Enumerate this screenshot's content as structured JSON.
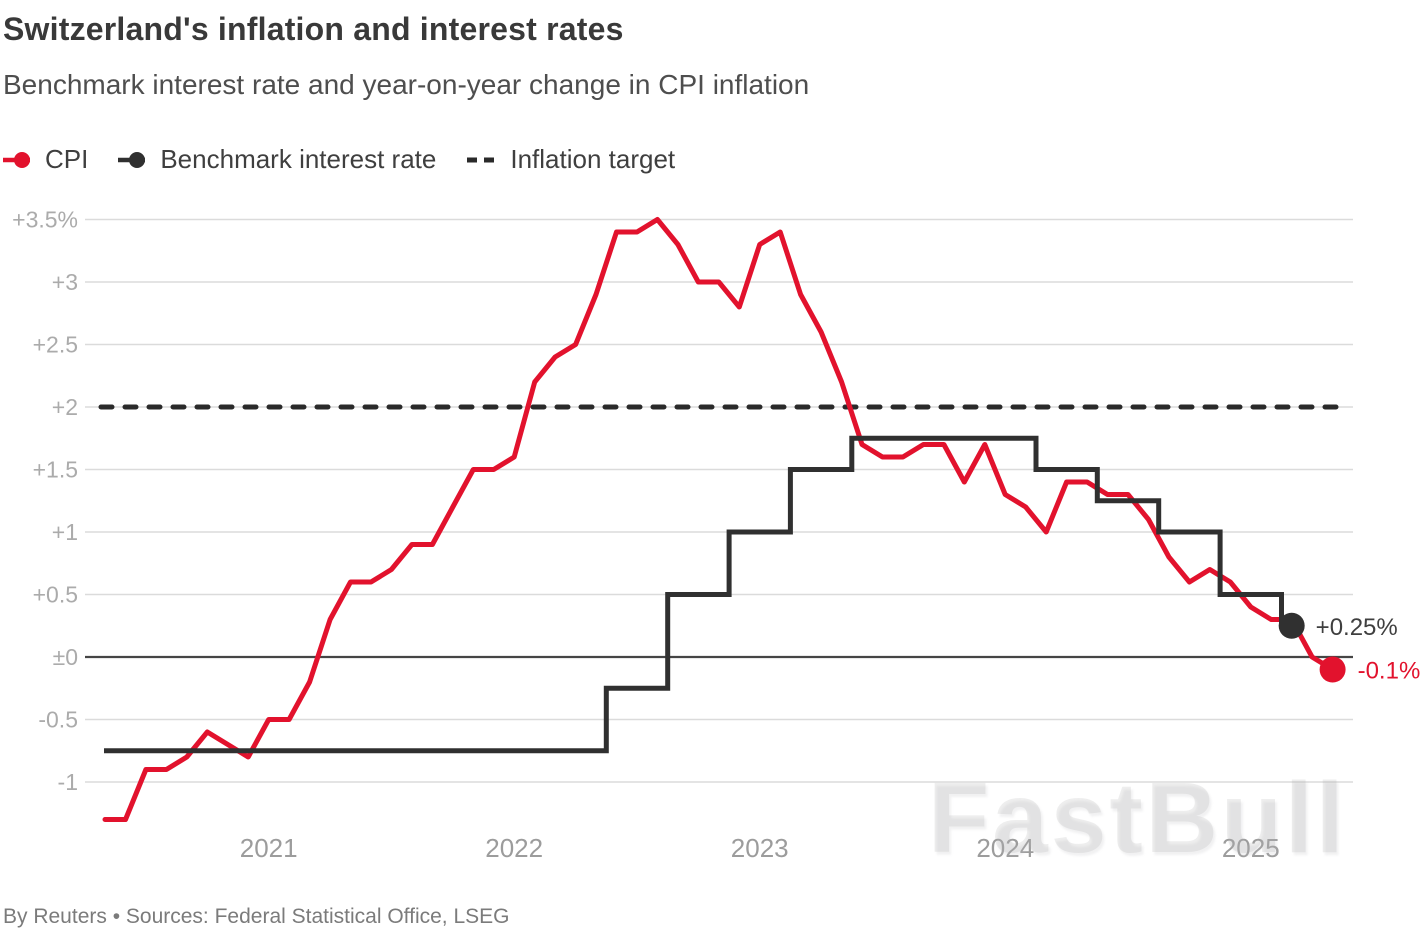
{
  "header": {
    "title": "Switzerland's inflation and interest rates",
    "subtitle": "Benchmark interest rate and year-on-year change in CPI inflation"
  },
  "legend": [
    {
      "label": "CPI",
      "marker": "line-dot",
      "color": "#e2122d"
    },
    {
      "label": "Benchmark interest rate",
      "marker": "line-dot",
      "color": "#303030"
    },
    {
      "label": "Inflation target",
      "marker": "dashes",
      "color": "#2a2a2a"
    }
  ],
  "annotations": {
    "rate_end_label": "+0.25%",
    "cpi_end_label": "-0.1%"
  },
  "watermark": "FastBull",
  "footer": {
    "source_line": "By Reuters • Sources: Federal Statistical Office, LSEG"
  },
  "colors": {
    "cpi_red": "#e2122d",
    "rate_black": "#303030",
    "target_dash": "#2a2a2a",
    "gridline": "#dbdbdb",
    "zero_line": "#454545",
    "y_tick_label": "#ababab",
    "x_tick_label": "#9c9c9c",
    "annotation_dark": "#3f3f3f"
  },
  "chart_data": {
    "type": "line",
    "title": "Switzerland's inflation and interest rates",
    "subtitle": "Benchmark interest rate and year-on-year change in CPI inflation",
    "unit": "percent",
    "x_start": "2020-05",
    "x_end": "2025-05",
    "x_frequency": "monthly",
    "x_tick_labels": [
      "2021",
      "2022",
      "2023",
      "2024",
      "2025"
    ],
    "x_tick_month_index": [
      8,
      20,
      32,
      44,
      56
    ],
    "y_ticks": [
      3.5,
      3,
      2.5,
      2,
      1.5,
      1,
      0.5,
      0,
      -0.5,
      -1
    ],
    "y_tick_labels": [
      "+3.5%",
      "+3",
      "+2.5",
      "+2",
      "+1.5",
      "+1",
      "+0.5",
      "±0",
      "-0.5",
      "-1"
    ],
    "ylim": [
      -1.45,
      3.7
    ],
    "grid": "horizontal",
    "legend_position": "top-left",
    "inflation_target_pct": 2,
    "series": [
      {
        "name": "CPI",
        "kind": "monthly_yoy_pct",
        "color": "#e2122d",
        "values": [
          -1.3,
          -1.3,
          -0.9,
          -0.9,
          -0.8,
          -0.6,
          -0.7,
          -0.8,
          -0.5,
          -0.5,
          -0.2,
          0.3,
          0.6,
          0.6,
          0.7,
          0.9,
          0.9,
          1.2,
          1.5,
          1.5,
          1.6,
          2.2,
          2.4,
          2.5,
          2.9,
          3.4,
          3.4,
          3.5,
          3.3,
          3.0,
          3.0,
          2.8,
          3.3,
          3.4,
          2.9,
          2.6,
          2.2,
          1.7,
          1.6,
          1.6,
          1.7,
          1.7,
          1.4,
          1.7,
          1.3,
          1.2,
          1.0,
          1.4,
          1.4,
          1.3,
          1.3,
          1.1,
          0.8,
          0.6,
          0.7,
          0.6,
          0.4,
          0.3,
          0.3,
          0.0,
          -0.1
        ],
        "end_value": -0.1,
        "end_label": "-0.1%"
      },
      {
        "name": "Benchmark interest rate",
        "kind": "policy_rate_steps_pct",
        "color": "#303030",
        "initial_rate": -0.75,
        "steps": [
          {
            "month": "2022-06",
            "month_index": 25,
            "rate": -0.25
          },
          {
            "month": "2022-09",
            "month_index": 28,
            "rate": 0.5
          },
          {
            "month": "2022-12",
            "month_index": 31,
            "rate": 1.0
          },
          {
            "month": "2023-03",
            "month_index": 34,
            "rate": 1.5
          },
          {
            "month": "2023-06",
            "month_index": 37,
            "rate": 1.75
          },
          {
            "month": "2024-03",
            "month_index": 46,
            "rate": 1.5
          },
          {
            "month": "2024-06",
            "month_index": 49,
            "rate": 1.25
          },
          {
            "month": "2024-09",
            "month_index": 52,
            "rate": 1.0
          },
          {
            "month": "2024-12",
            "month_index": 55,
            "rate": 0.5
          },
          {
            "month": "2025-03",
            "month_index": 58,
            "rate": 0.25
          }
        ],
        "end_value": 0.25,
        "end_label": "+0.25%"
      },
      {
        "name": "Inflation target",
        "kind": "reference_line",
        "style": "dashed",
        "color": "#2a2a2a",
        "value": 2
      }
    ]
  }
}
